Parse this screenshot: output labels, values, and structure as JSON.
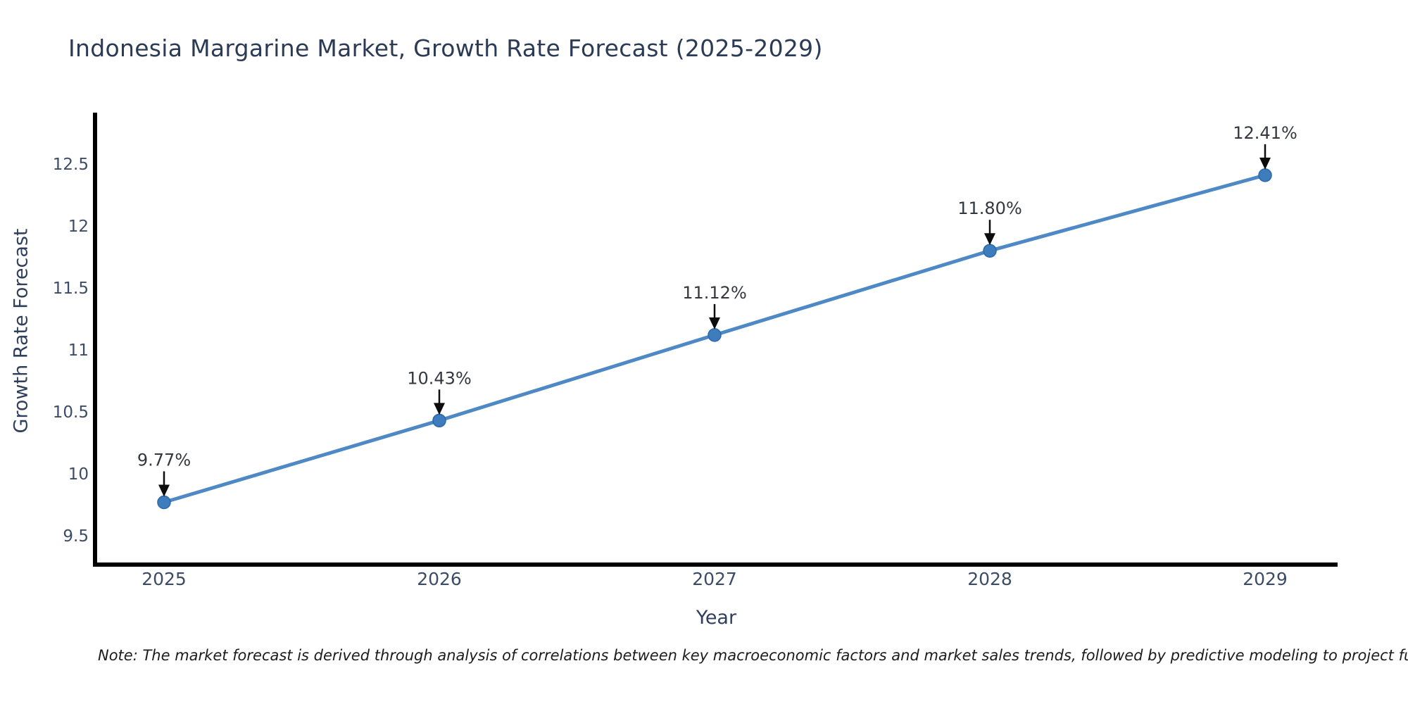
{
  "chart_data": {
    "type": "line",
    "title": "Indonesia Margarine Market, Growth Rate Forecast (2025-2029)",
    "xlabel": "Year",
    "ylabel": "Growth Rate Forecast",
    "categories": [
      "2025",
      "2026",
      "2027",
      "2028",
      "2029"
    ],
    "series": [
      {
        "name": "Growth Rate Forecast",
        "values": [
          9.77,
          10.43,
          11.12,
          11.8,
          12.41
        ]
      }
    ],
    "point_labels": [
      "9.77%",
      "10.43%",
      "11.12%",
      "11.80%",
      "12.41%"
    ],
    "y_ticks": [
      9.5,
      10,
      10.5,
      11,
      11.5,
      12,
      12.5
    ],
    "ylim": [
      9.28,
      12.95
    ],
    "grid": false,
    "legend_position": "none",
    "annotation_style": "down-arrow",
    "colors": {
      "line": "#4e89c6",
      "marker_fill": "#3d7dbe",
      "marker_edge": "#2e68a6",
      "axis_spine": "#000000",
      "title_text": "#2b3a55",
      "tick_text": "#3d4c66",
      "axis_title_text": "#2f3f5c",
      "annotation_text": "#33383f",
      "arrow": "#0d0d0d",
      "background": "#ffffff"
    }
  },
  "note": "Note: The market forecast is derived through analysis of correlations between key macroeconomic factors and market sales trends, followed by predictive modeling to project future sal"
}
